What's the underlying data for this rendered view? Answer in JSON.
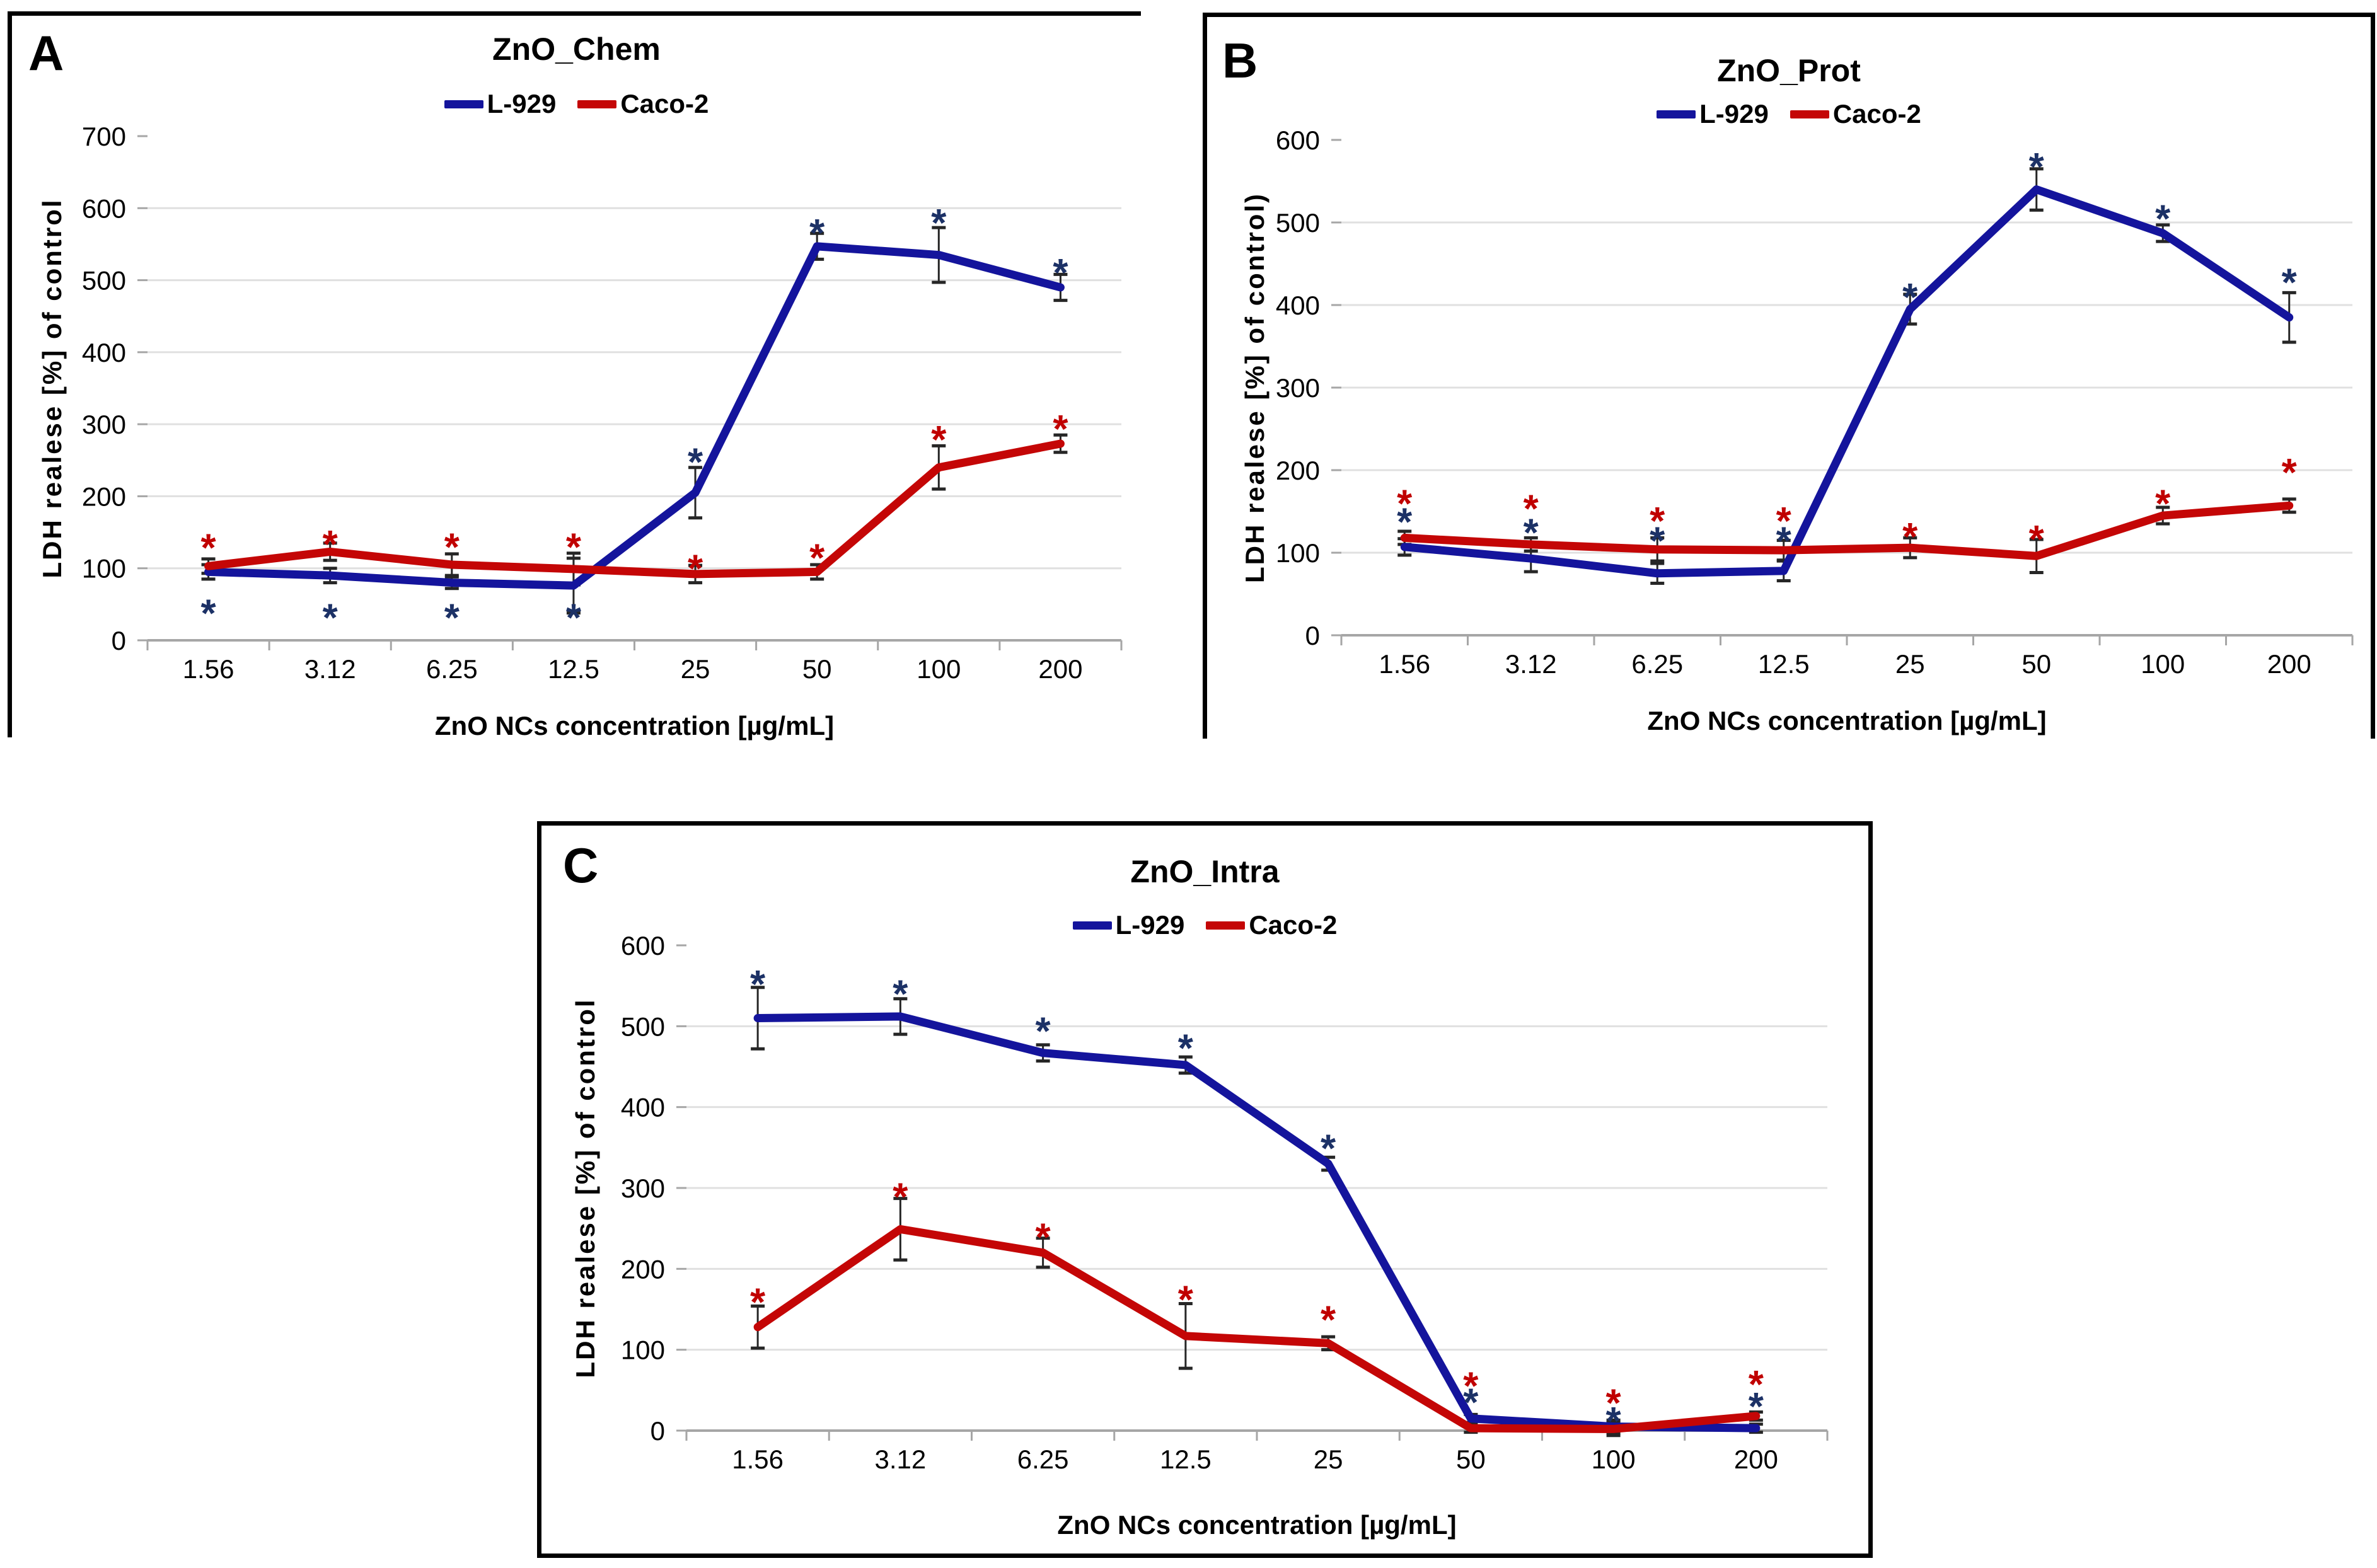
{
  "colors": {
    "l929": "#14149C",
    "caco2": "#C40606",
    "star_l929": "#1C3166",
    "star_caco2": "#C00000",
    "grid": "#E0E0E0",
    "axis": "#A6A6A6",
    "error": "#262626",
    "border": "#000000",
    "text": "#000000",
    "background": "#FFFFFF"
  },
  "panels": [
    {
      "letter": "A"
    },
    {
      "letter": "B"
    },
    {
      "letter": "C"
    }
  ],
  "chart_data": [
    {
      "type": "line",
      "panel": "A",
      "title": "ZnO_Chem",
      "xlabel": "ZnO NCs concentration [µg/mL]",
      "ylabel": "LDH realese [%] of control",
      "categories": [
        "1.56",
        "3.12",
        "6.25",
        "12.5",
        "25",
        "50",
        "100",
        "200"
      ],
      "ylim": [
        0,
        700
      ],
      "ytick_step": 100,
      "grid": true,
      "legend_position": "top",
      "series": [
        {
          "name": "L-929",
          "color_key": "l929",
          "star_color_key": "star_l929",
          "values": [
            95,
            90,
            80,
            76,
            205,
            547,
            535,
            490
          ],
          "error": [
            10,
            10,
            8,
            38,
            35,
            18,
            38,
            18
          ],
          "stars": [
            52,
            46,
            46,
            46,
            262,
            580,
            594,
            525
          ]
        },
        {
          "name": "Caco-2",
          "color_key": "caco2",
          "star_color_key": "star_caco2",
          "values": [
            103,
            123,
            105,
            99,
            92,
            95,
            240,
            273
          ],
          "error": [
            10,
            12,
            15,
            22,
            12,
            10,
            30,
            12
          ],
          "stars": [
            143,
            148,
            144,
            144,
            114,
            129,
            293,
            308
          ]
        }
      ]
    },
    {
      "type": "line",
      "panel": "B",
      "title": "ZnO_Prot",
      "xlabel": "ZnO NCs concentration [µg/mL]",
      "ylabel": "LDH realese [%] of control)",
      "categories": [
        "1.56",
        "3.12",
        "6.25",
        "12.5",
        "25",
        "50",
        "100",
        "200"
      ],
      "ylim": [
        0,
        600
      ],
      "ytick_step": 100,
      "grid": true,
      "legend_position": "top",
      "series": [
        {
          "name": "L-929",
          "color_key": "l929",
          "star_color_key": "star_l929",
          "values": [
            107,
            93,
            75,
            78,
            395,
            540,
            487,
            385
          ],
          "error": [
            10,
            16,
            12,
            12,
            18,
            25,
            10,
            30
          ],
          "stars": [
            150,
            137,
            127,
            127,
            422,
            580,
            517,
            440
          ]
        },
        {
          "name": "Caco-2",
          "color_key": "caco2",
          "star_color_key": "star_caco2",
          "values": [
            118,
            110,
            104,
            103,
            106,
            96,
            145,
            157
          ],
          "error": [
            8,
            8,
            14,
            12,
            12,
            20,
            10,
            8
          ],
          "stars": [
            172,
            166,
            151,
            151,
            132,
            129,
            172,
            210
          ]
        }
      ]
    },
    {
      "type": "line",
      "panel": "C",
      "title": "ZnO_Intra",
      "xlabel": "ZnO NCs concentration [µg/mL]",
      "ylabel": "LDH realese [%] of control",
      "categories": [
        "1.56",
        "3.12",
        "6.25",
        "12.5",
        "25",
        "50",
        "100",
        "200"
      ],
      "ylim": [
        0,
        600
      ],
      "ytick_step": 100,
      "grid": true,
      "legend_position": "top",
      "series": [
        {
          "name": "L-929",
          "color_key": "l929",
          "star_color_key": "star_l929",
          "values": [
            510,
            512,
            467,
            452,
            330,
            15,
            5,
            3
          ],
          "error": [
            38,
            22,
            10,
            10,
            8,
            5,
            8,
            5
          ],
          "stars": [
            565,
            553,
            507,
            486,
            362,
            48,
            25,
            43
          ]
        },
        {
          "name": "Caco-2",
          "color_key": "caco2",
          "star_color_key": "star_caco2",
          "values": [
            128,
            249,
            220,
            117,
            108,
            3,
            2,
            18
          ],
          "error": [
            26,
            38,
            18,
            40,
            8,
            5,
            8,
            5
          ],
          "stars": [
            172,
            302,
            252,
            175,
            150,
            68,
            47,
            70
          ]
        }
      ]
    }
  ]
}
